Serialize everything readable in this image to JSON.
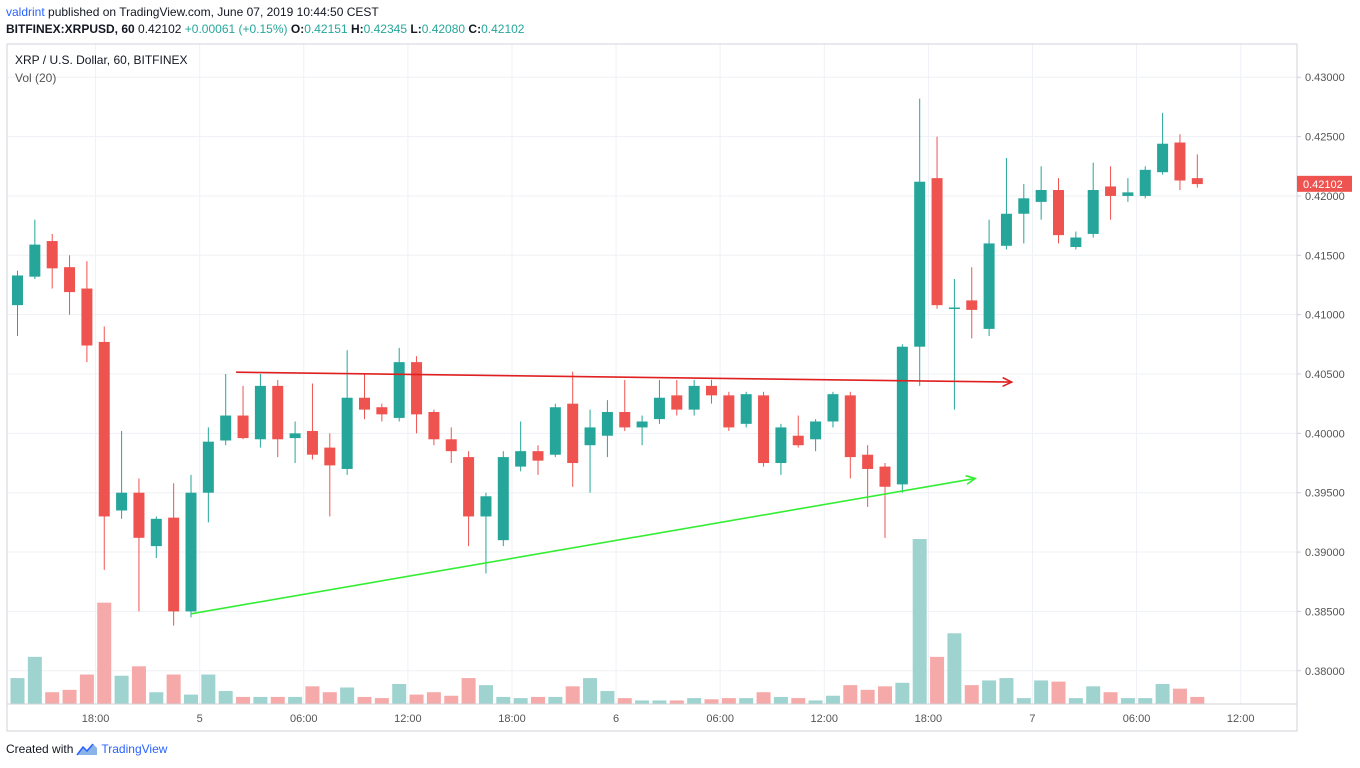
{
  "header": {
    "author": "valdrint",
    "published_text": "published on TradingView.com, June 07, 2019 10:44:50 CEST",
    "symbol": "BITFINEX:XRPUSD, 60",
    "last": "0.42102",
    "change": "+0.00061 (+0.15%)",
    "o_label": "O:",
    "o_value": "0.42151",
    "h_label": "H:",
    "h_value": "0.42345",
    "l_label": "L:",
    "l_value": "0.42080",
    "c_label": "C:",
    "c_value": "0.42102"
  },
  "footer": {
    "created_with": "Created with",
    "brand": "TradingView"
  },
  "colors": {
    "up": "#26a69a",
    "down": "#ef5350",
    "vol_up": "#9fd3cf",
    "vol_down": "#f5a9a8",
    "resistance": "#e02020",
    "support": "#33ee33",
    "grid": "#eef1f6"
  },
  "chart_data": {
    "type": "candlestick",
    "title": "XRP / U.S. Dollar, 60, BITFINEX",
    "indicator": "Vol (20)",
    "last_price_label": "0.42102",
    "y_ticks": [
      "0.38000",
      "0.38500",
      "0.39000",
      "0.39500",
      "0.40000",
      "0.40500",
      "0.41000",
      "0.41500",
      "0.42000",
      "0.42500",
      "0.43000"
    ],
    "ylim": [
      0.3772,
      0.4328
    ],
    "x_ticks": [
      {
        "label": "18:00",
        "i": 4.5
      },
      {
        "label": "5",
        "i": 10.5
      },
      {
        "label": "06:00",
        "i": 16.5
      },
      {
        "label": "12:00",
        "i": 22.5
      },
      {
        "label": "18:00",
        "i": 28.5
      },
      {
        "label": "6",
        "i": 34.5
      },
      {
        "label": "06:00",
        "i": 40.5
      },
      {
        "label": "12:00",
        "i": 46.5
      },
      {
        "label": "18:00",
        "i": 52.5
      },
      {
        "label": "7",
        "i": 58.5
      },
      {
        "label": "06:00",
        "i": 64.5
      },
      {
        "label": "12:00",
        "i": 70.5
      }
    ],
    "candles": [
      {
        "o": 0.4108,
        "h": 0.4137,
        "l": 0.4082,
        "c": 0.4133,
        "v": 22
      },
      {
        "o": 0.4132,
        "h": 0.418,
        "l": 0.413,
        "c": 0.4159,
        "v": 40
      },
      {
        "o": 0.4162,
        "h": 0.4168,
        "l": 0.4122,
        "c": 0.4139,
        "v": 10
      },
      {
        "o": 0.414,
        "h": 0.415,
        "l": 0.41,
        "c": 0.4119,
        "v": 12
      },
      {
        "o": 0.4122,
        "h": 0.4145,
        "l": 0.406,
        "c": 0.4074,
        "v": 25
      },
      {
        "o": 0.4077,
        "h": 0.409,
        "l": 0.3885,
        "c": 0.393,
        "v": 86
      },
      {
        "o": 0.3935,
        "h": 0.4002,
        "l": 0.3928,
        "c": 0.395,
        "v": 24
      },
      {
        "o": 0.395,
        "h": 0.3962,
        "l": 0.385,
        "c": 0.3912,
        "v": 32
      },
      {
        "o": 0.3905,
        "h": 0.393,
        "l": 0.3895,
        "c": 0.3928,
        "v": 10
      },
      {
        "o": 0.3929,
        "h": 0.3958,
        "l": 0.3838,
        "c": 0.385,
        "v": 25
      },
      {
        "o": 0.385,
        "h": 0.3965,
        "l": 0.3845,
        "c": 0.395,
        "v": 8
      },
      {
        "o": 0.395,
        "h": 0.4005,
        "l": 0.3925,
        "c": 0.3993,
        "v": 25
      },
      {
        "o": 0.3994,
        "h": 0.405,
        "l": 0.399,
        "c": 0.4015,
        "v": 11
      },
      {
        "o": 0.4015,
        "h": 0.404,
        "l": 0.3995,
        "c": 0.3996,
        "v": 6
      },
      {
        "o": 0.3995,
        "h": 0.405,
        "l": 0.3988,
        "c": 0.404,
        "v": 6
      },
      {
        "o": 0.404,
        "h": 0.4045,
        "l": 0.398,
        "c": 0.3995,
        "v": 6
      },
      {
        "o": 0.3996,
        "h": 0.401,
        "l": 0.3975,
        "c": 0.4,
        "v": 6
      },
      {
        "o": 0.4002,
        "h": 0.4042,
        "l": 0.3978,
        "c": 0.3982,
        "v": 15
      },
      {
        "o": 0.3988,
        "h": 0.4,
        "l": 0.393,
        "c": 0.3973,
        "v": 10
      },
      {
        "o": 0.397,
        "h": 0.407,
        "l": 0.3965,
        "c": 0.403,
        "v": 14
      },
      {
        "o": 0.403,
        "h": 0.405,
        "l": 0.4012,
        "c": 0.402,
        "v": 6
      },
      {
        "o": 0.4022,
        "h": 0.4025,
        "l": 0.401,
        "c": 0.4016,
        "v": 5
      },
      {
        "o": 0.4013,
        "h": 0.4072,
        "l": 0.401,
        "c": 0.406,
        "v": 17
      },
      {
        "o": 0.406,
        "h": 0.4065,
        "l": 0.4,
        "c": 0.4016,
        "v": 8
      },
      {
        "o": 0.4018,
        "h": 0.402,
        "l": 0.399,
        "c": 0.3995,
        "v": 10
      },
      {
        "o": 0.3995,
        "h": 0.4005,
        "l": 0.3975,
        "c": 0.3985,
        "v": 7
      },
      {
        "o": 0.398,
        "h": 0.3985,
        "l": 0.3905,
        "c": 0.393,
        "v": 22
      },
      {
        "o": 0.393,
        "h": 0.395,
        "l": 0.3882,
        "c": 0.3947,
        "v": 16
      },
      {
        "o": 0.391,
        "h": 0.3985,
        "l": 0.3905,
        "c": 0.398,
        "v": 6
      },
      {
        "o": 0.3972,
        "h": 0.401,
        "l": 0.3968,
        "c": 0.3985,
        "v": 5
      },
      {
        "o": 0.3985,
        "h": 0.399,
        "l": 0.3965,
        "c": 0.3977,
        "v": 6
      },
      {
        "o": 0.3982,
        "h": 0.4025,
        "l": 0.398,
        "c": 0.4022,
        "v": 6
      },
      {
        "o": 0.4025,
        "h": 0.4052,
        "l": 0.3955,
        "c": 0.3975,
        "v": 15
      },
      {
        "o": 0.399,
        "h": 0.402,
        "l": 0.395,
        "c": 0.4005,
        "v": 22
      },
      {
        "o": 0.3998,
        "h": 0.4028,
        "l": 0.398,
        "c": 0.4018,
        "v": 11
      },
      {
        "o": 0.4018,
        "h": 0.4045,
        "l": 0.4002,
        "c": 0.4005,
        "v": 5
      },
      {
        "o": 0.4005,
        "h": 0.4015,
        "l": 0.399,
        "c": 0.401,
        "v": 3
      },
      {
        "o": 0.4012,
        "h": 0.4045,
        "l": 0.4008,
        "c": 0.403,
        "v": 3
      },
      {
        "o": 0.4032,
        "h": 0.4045,
        "l": 0.4015,
        "c": 0.402,
        "v": 3
      },
      {
        "o": 0.402,
        "h": 0.4045,
        "l": 0.4015,
        "c": 0.404,
        "v": 5
      },
      {
        "o": 0.404,
        "h": 0.4045,
        "l": 0.4025,
        "c": 0.4032,
        "v": 4
      },
      {
        "o": 0.4032,
        "h": 0.4035,
        "l": 0.4002,
        "c": 0.4005,
        "v": 5
      },
      {
        "o": 0.4008,
        "h": 0.4035,
        "l": 0.4005,
        "c": 0.4033,
        "v": 5
      },
      {
        "o": 0.4032,
        "h": 0.4035,
        "l": 0.3972,
        "c": 0.3975,
        "v": 10
      },
      {
        "o": 0.3975,
        "h": 0.4008,
        "l": 0.3965,
        "c": 0.4005,
        "v": 6
      },
      {
        "o": 0.3998,
        "h": 0.4015,
        "l": 0.3988,
        "c": 0.399,
        "v": 5
      },
      {
        "o": 0.3995,
        "h": 0.4012,
        "l": 0.3985,
        "c": 0.401,
        "v": 3
      },
      {
        "o": 0.401,
        "h": 0.4035,
        "l": 0.4005,
        "c": 0.4033,
        "v": 7
      },
      {
        "o": 0.4032,
        "h": 0.4035,
        "l": 0.3962,
        "c": 0.398,
        "v": 16
      },
      {
        "o": 0.3982,
        "h": 0.399,
        "l": 0.3938,
        "c": 0.397,
        "v": 12
      },
      {
        "o": 0.3972,
        "h": 0.3975,
        "l": 0.3912,
        "c": 0.3955,
        "v": 15
      },
      {
        "o": 0.3957,
        "h": 0.4075,
        "l": 0.395,
        "c": 0.4073,
        "v": 18
      },
      {
        "o": 0.4073,
        "h": 0.4282,
        "l": 0.404,
        "c": 0.4212,
        "v": 140
      },
      {
        "o": 0.4215,
        "h": 0.425,
        "l": 0.4105,
        "c": 0.4108,
        "v": 40
      },
      {
        "o": 0.4106,
        "h": 0.413,
        "l": 0.402,
        "c": 0.4106,
        "v": 60
      },
      {
        "o": 0.4112,
        "h": 0.414,
        "l": 0.408,
        "c": 0.4104,
        "v": 16
      },
      {
        "o": 0.4088,
        "h": 0.418,
        "l": 0.4082,
        "c": 0.416,
        "v": 20
      },
      {
        "o": 0.4158,
        "h": 0.4232,
        "l": 0.4155,
        "c": 0.4185,
        "v": 22
      },
      {
        "o": 0.4185,
        "h": 0.421,
        "l": 0.416,
        "c": 0.4198,
        "v": 5
      },
      {
        "o": 0.4195,
        "h": 0.4225,
        "l": 0.418,
        "c": 0.4205,
        "v": 20
      },
      {
        "o": 0.4205,
        "h": 0.4215,
        "l": 0.416,
        "c": 0.4167,
        "v": 19
      },
      {
        "o": 0.4157,
        "h": 0.417,
        "l": 0.4155,
        "c": 0.4165,
        "v": 5
      },
      {
        "o": 0.4168,
        "h": 0.4228,
        "l": 0.4165,
        "c": 0.4205,
        "v": 15
      },
      {
        "o": 0.4208,
        "h": 0.4225,
        "l": 0.418,
        "c": 0.42,
        "v": 10
      },
      {
        "o": 0.42,
        "h": 0.4215,
        "l": 0.4195,
        "c": 0.4203,
        "v": 5
      },
      {
        "o": 0.42,
        "h": 0.4225,
        "l": 0.4198,
        "c": 0.4222,
        "v": 5
      },
      {
        "o": 0.422,
        "h": 0.427,
        "l": 0.4218,
        "c": 0.4244,
        "v": 17
      },
      {
        "o": 0.4245,
        "h": 0.4252,
        "l": 0.4205,
        "c": 0.4213,
        "v": 13
      },
      {
        "o": 0.4215,
        "h": 0.4235,
        "l": 0.4207,
        "c": 0.421,
        "v": 6
      }
    ],
    "trendlines": [
      {
        "name": "resistance",
        "from": {
          "i": 12.6,
          "p": 0.40515
        },
        "to": {
          "i": 57.3,
          "p": 0.40432
        },
        "color": "#e02020"
      },
      {
        "name": "support",
        "from": {
          "i": 10.0,
          "p": 0.3848
        },
        "to": {
          "i": 55.2,
          "p": 0.3962
        },
        "color": "#33ee33"
      }
    ]
  }
}
